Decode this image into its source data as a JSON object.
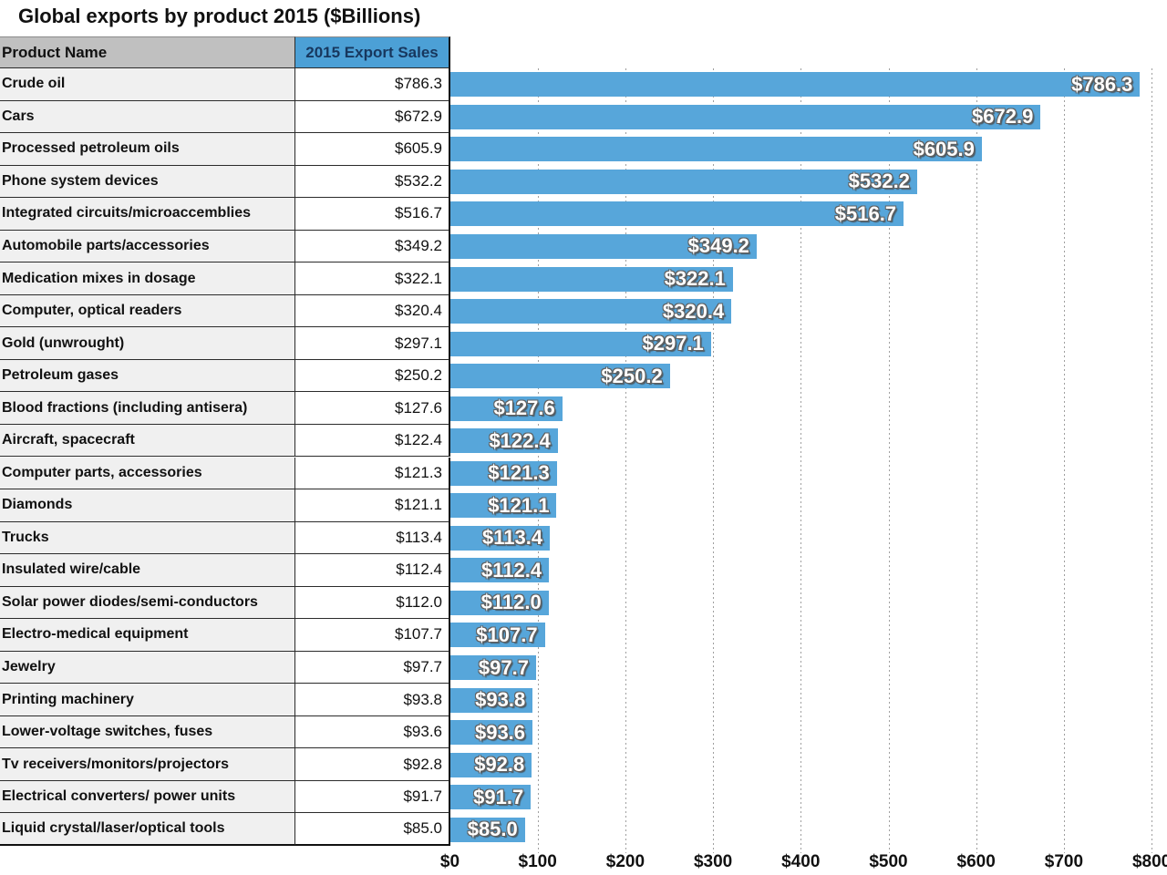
{
  "title": "Global exports by product 2015 ($Billions)",
  "colors": {
    "bar": "#57a6da",
    "header_fill": "#4ca0d6",
    "header_text": "#17375e",
    "name_header_fill": "#c0c0c0",
    "name_cell_fill": "#f0f0f0",
    "gridline": "#9f9f9f",
    "bar_label_text": "#ffffff",
    "bar_label_outline": "#606060"
  },
  "table": {
    "columns": [
      "Product Name",
      "2015 Export Sales"
    ]
  },
  "chart_data": {
    "type": "bar",
    "orientation": "horizontal",
    "title": "Global exports by product 2015 ($Billions)",
    "categories": [
      "Crude oil",
      "Cars",
      "Processed petroleum oils",
      "Phone system devices",
      "Integrated circuits/microaccemblies",
      "Automobile parts/accessories",
      "Medication mixes in dosage",
      "Computer, optical readers",
      "Gold (unwrought)",
      "Petroleum gases",
      "Blood fractions (including antisera)",
      "Aircraft, spacecraft",
      "Computer parts, accessories",
      "Diamonds",
      "Trucks",
      "Insulated wire/cable",
      "Solar power diodes/semi-conductors",
      "Electro-medical equipment",
      "Jewelry",
      "Printing machinery",
      "Lower-voltage switches, fuses",
      "Tv receivers/monitors/projectors",
      "Electrical converters/ power units",
      "Liquid crystal/laser/optical tools"
    ],
    "values": [
      786.3,
      672.9,
      605.9,
      532.2,
      516.7,
      349.2,
      322.1,
      320.4,
      297.1,
      250.2,
      127.6,
      122.4,
      121.3,
      121.1,
      113.4,
      112.4,
      112.0,
      107.7,
      97.7,
      93.8,
      93.6,
      92.8,
      91.7,
      85.0
    ],
    "bar_labels": [
      "$786.3",
      "$672.9",
      "$605.9",
      "$532.2",
      "$516.7",
      "$349.2",
      "$322.1",
      "$320.4",
      "$297.1",
      "$250.2",
      "$127.6",
      "$122.4",
      "$121.3",
      "$121.1",
      "$113.4",
      "$112.4",
      "$112.0",
      "$107.7",
      "$97.7",
      "$93.8",
      "$93.6",
      "$92.8",
      "$91.7",
      "$85.0"
    ],
    "x_ticks": [
      "$0",
      "$100",
      "$200",
      "$300",
      "$400",
      "$500",
      "$600",
      "$700",
      "$800"
    ],
    "xlim": [
      0,
      800
    ],
    "ylabel": "",
    "xlabel": "",
    "grid": "vertical-dotted",
    "legend": "none",
    "value_labels": "inside-end"
  }
}
